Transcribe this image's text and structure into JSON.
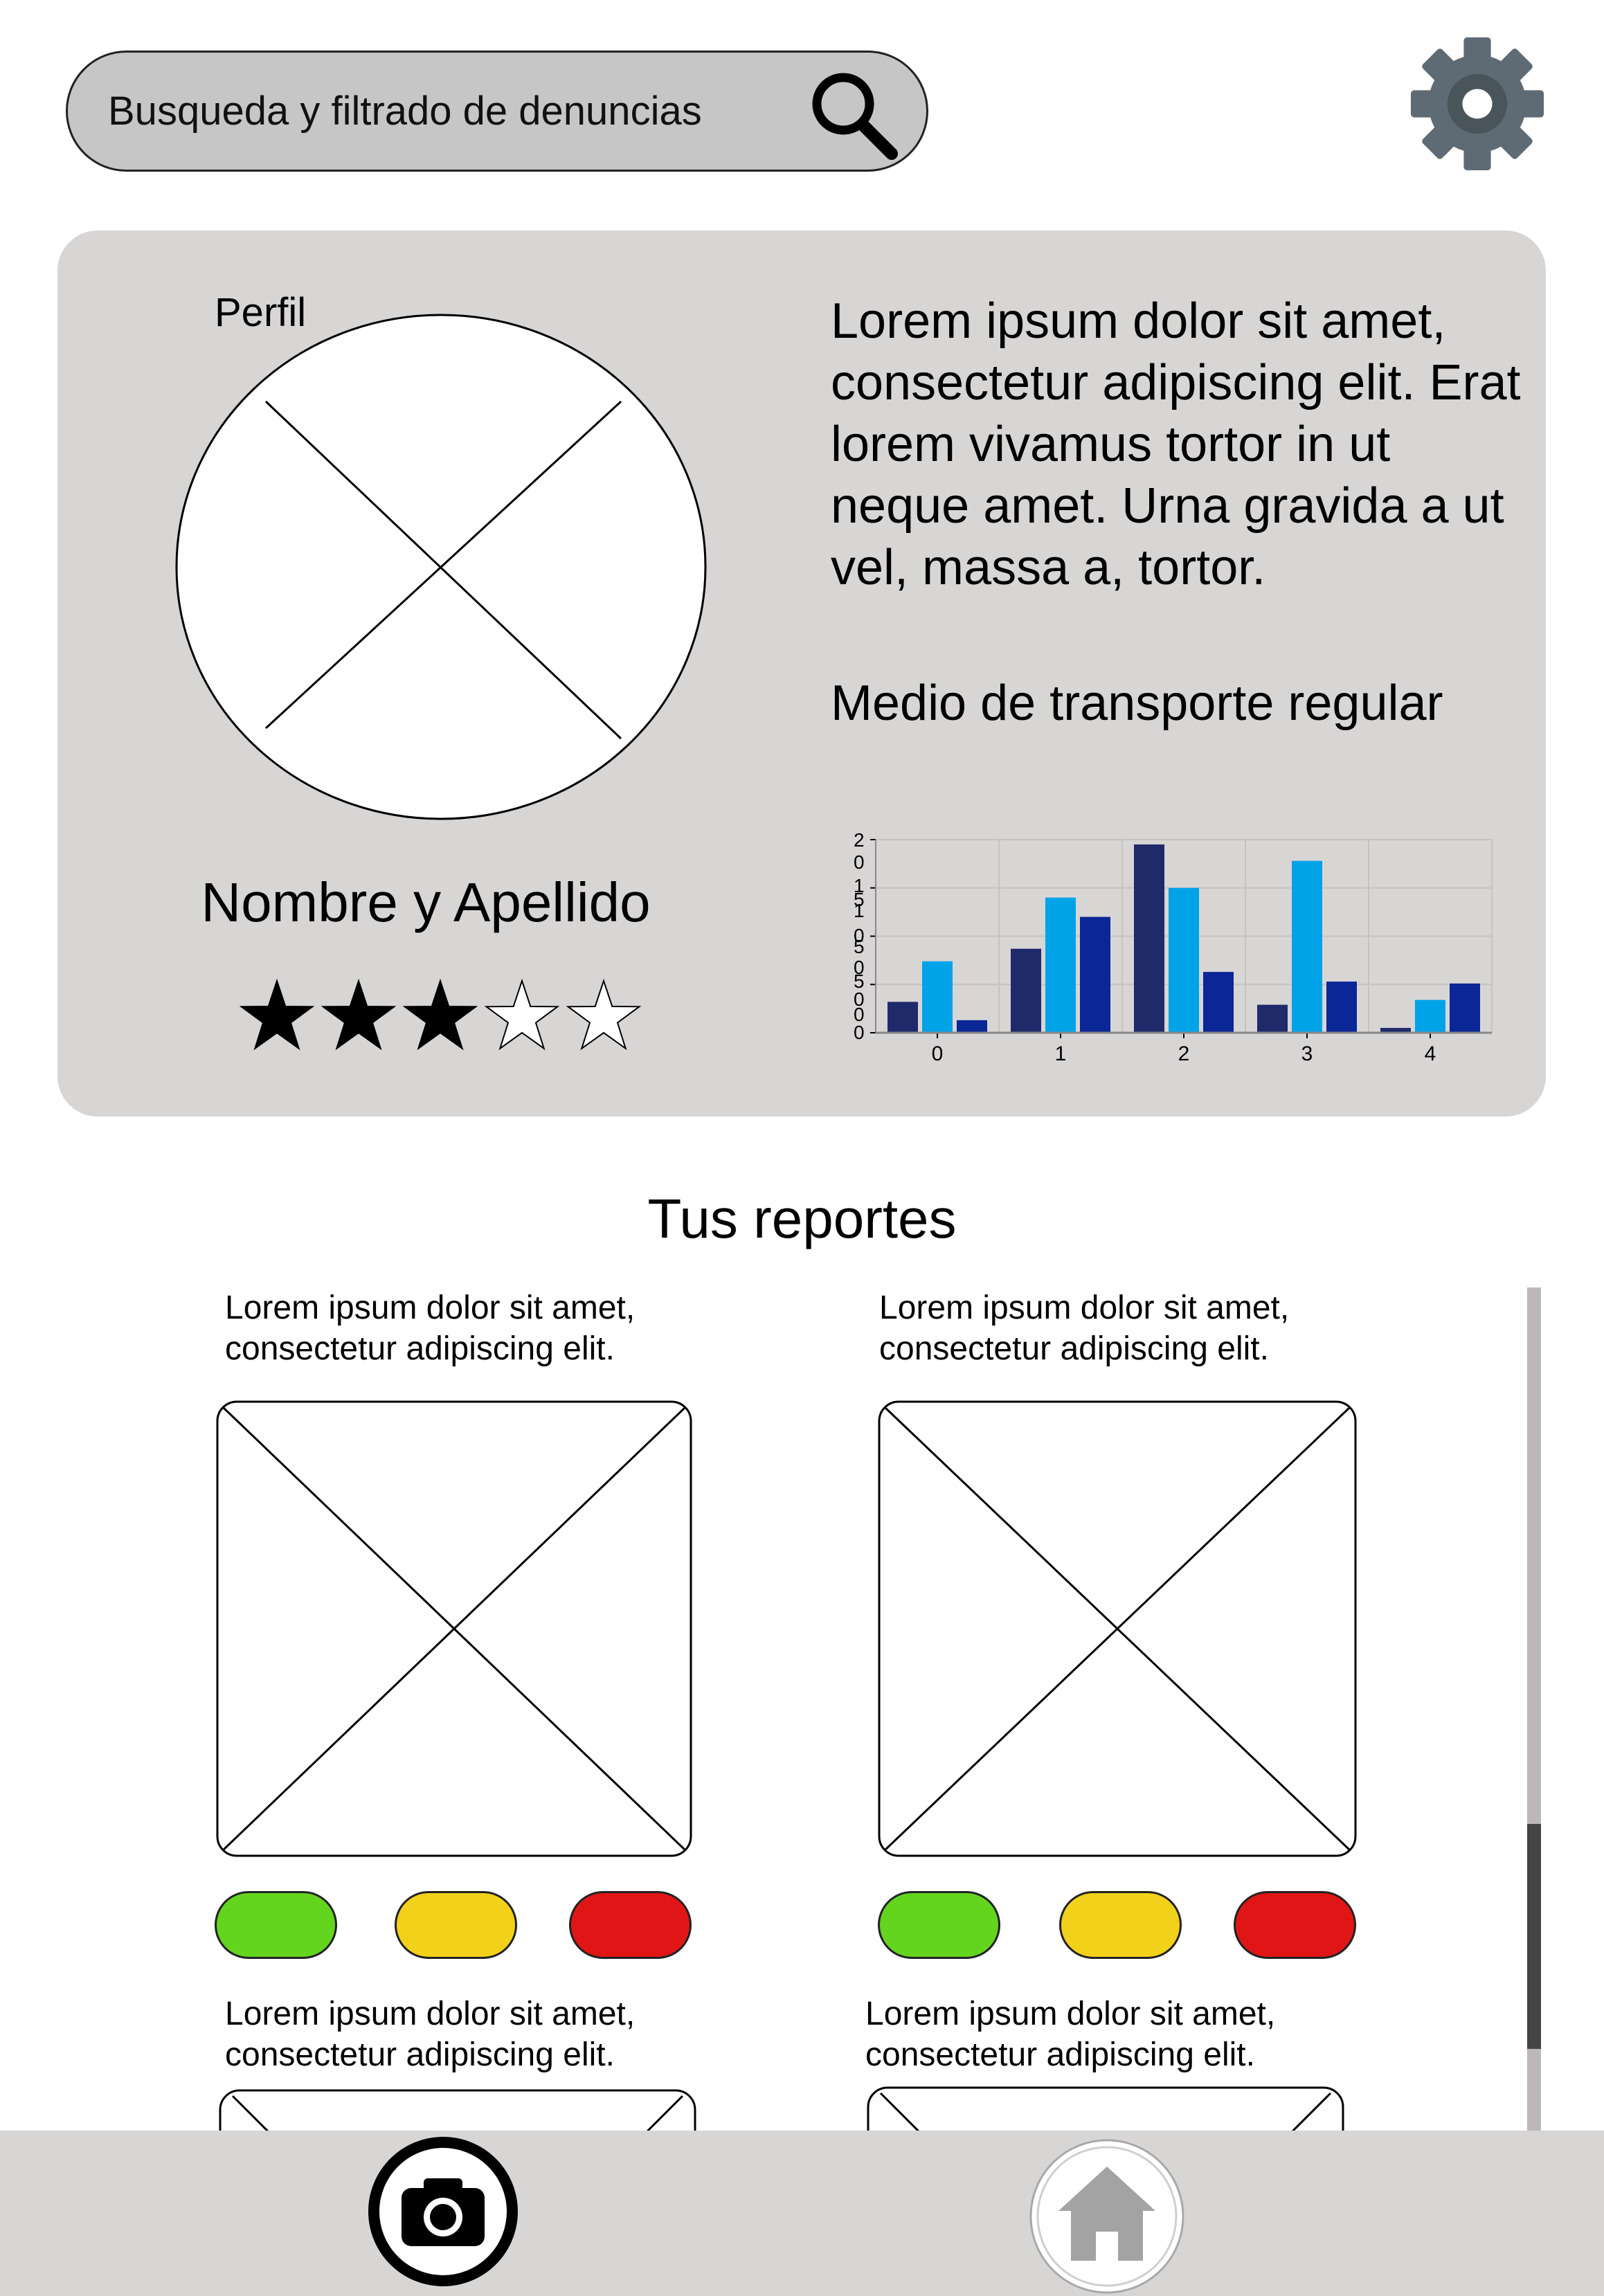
{
  "search": {
    "placeholder": "Busqueda y filtrado de denuncias"
  },
  "profile": {
    "label": "Perfil",
    "name": "Nombre y Apellido",
    "rating": 3,
    "rating_max": 5,
    "description": "Lorem ipsum dolor sit amet, consectetur adipiscing elit. Erat lorem vivamus tortor in ut neque amet. Urna gravida a ut vel, massa a, tortor.",
    "transport_label": "Medio de transporte regular"
  },
  "chart_data": {
    "type": "bar",
    "categories": [
      "0",
      "1",
      "2",
      "3",
      "4"
    ],
    "series": [
      {
        "color": "#1f2a6b",
        "values": [
          3.2,
          8.7,
          19.5,
          2.9,
          0.5
        ]
      },
      {
        "color": "#00a3e8",
        "values": [
          7.4,
          14.0,
          15.0,
          17.8,
          3.4
        ]
      },
      {
        "color": "#0b2696",
        "values": [
          1.3,
          12.0,
          6.3,
          5.3,
          5.1
        ]
      }
    ],
    "ylim": [
      0,
      20
    ],
    "yticks": [
      "0",
      "5",
      "10",
      "15",
      "20"
    ],
    "ytick_labels_displayed": [
      "2\n0",
      "1\n5",
      "1\n0",
      "5",
      "0"
    ],
    "grid": true
  },
  "reports": {
    "title": "Tus reportes",
    "items": [
      {
        "text_line1": "Lorem ipsum dolor sit amet,",
        "text_line2": "consectetur adipiscing elit."
      },
      {
        "text_line1": "Lorem ipsum dolor sit amet,",
        "text_line2": "consectetur adipiscing elit."
      },
      {
        "text_line1": "Lorem ipsum dolor sit amet,",
        "text_line2": "consectetur adipiscing elit."
      },
      {
        "text_line1": "Lorem ipsum dolor sit amet,",
        "text_line2": "consectetur adipiscing elit."
      }
    ],
    "status_colors": {
      "green": "#63d51e",
      "yellow": "#f2d11a",
      "red": "#e01616"
    }
  },
  "nav": {
    "camera_icon": "camera-icon",
    "home_icon": "home-icon"
  }
}
